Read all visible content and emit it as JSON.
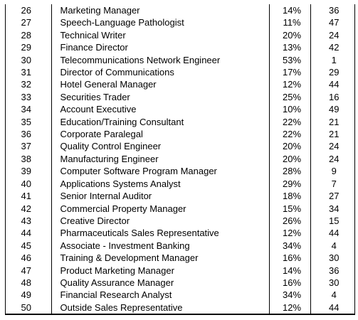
{
  "rows": [
    {
      "num": "26",
      "title": "Marketing Manager",
      "pct": "14%",
      "rank": "36"
    },
    {
      "num": "27",
      "title": "Speech-Language Pathologist",
      "pct": "11%",
      "rank": "47"
    },
    {
      "num": "28",
      "title": "Technical Writer",
      "pct": "20%",
      "rank": "24"
    },
    {
      "num": "29",
      "title": "Finance Director",
      "pct": "13%",
      "rank": "42"
    },
    {
      "num": "30",
      "title": "Telecommunications Network Engineer",
      "pct": "53%",
      "rank": "1"
    },
    {
      "num": "31",
      "title": "Director of Communications",
      "pct": "17%",
      "rank": "29"
    },
    {
      "num": "32",
      "title": "Hotel General Manager",
      "pct": "12%",
      "rank": "44"
    },
    {
      "num": "33",
      "title": "Securities Trader",
      "pct": "25%",
      "rank": "16"
    },
    {
      "num": "34",
      "title": "Account Executive",
      "pct": "10%",
      "rank": "49"
    },
    {
      "num": "35",
      "title": "Education/Training Consultant",
      "pct": "22%",
      "rank": "21"
    },
    {
      "num": "36",
      "title": "Corporate Paralegal",
      "pct": "22%",
      "rank": "21"
    },
    {
      "num": "37",
      "title": "Quality Control Engineer",
      "pct": "20%",
      "rank": "24"
    },
    {
      "num": "38",
      "title": "Manufacturing Engineer",
      "pct": "20%",
      "rank": "24"
    },
    {
      "num": "39",
      "title": "Computer Software Program Manager",
      "pct": "28%",
      "rank": "9"
    },
    {
      "num": "40",
      "title": "Applications Systems Analyst",
      "pct": "29%",
      "rank": "7"
    },
    {
      "num": "41",
      "title": "Senior Internal Auditor",
      "pct": "18%",
      "rank": "27"
    },
    {
      "num": "42",
      "title": "Commercial Property Manager",
      "pct": "15%",
      "rank": "34"
    },
    {
      "num": "43",
      "title": "Creative Director",
      "pct": "26%",
      "rank": "15"
    },
    {
      "num": "44",
      "title": "Pharmaceuticals Sales Representative",
      "pct": "12%",
      "rank": "44"
    },
    {
      "num": "45",
      "title": "Associate - Investment Banking",
      "pct": "34%",
      "rank": "4"
    },
    {
      "num": "46",
      "title": "Training & Development Manager",
      "pct": "16%",
      "rank": "30"
    },
    {
      "num": "47",
      "title": "Product Marketing Manager",
      "pct": "14%",
      "rank": "36"
    },
    {
      "num": "48",
      "title": "Quality Assurance Manager",
      "pct": "16%",
      "rank": "30"
    },
    {
      "num": "49",
      "title": "Financial Research Analyst",
      "pct": "34%",
      "rank": "4"
    },
    {
      "num": "50",
      "title": "Outside Sales Representative",
      "pct": "12%",
      "rank": "44"
    }
  ]
}
